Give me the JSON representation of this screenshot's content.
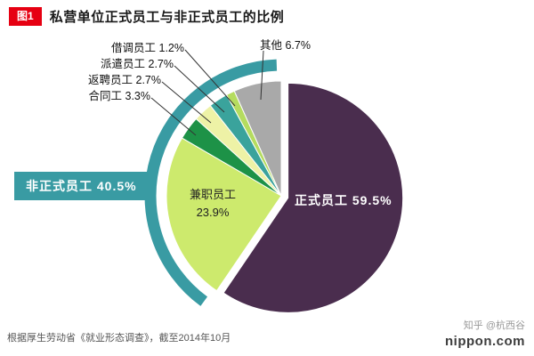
{
  "header": {
    "badge": "图1",
    "title": "私营单位正式员工与非正式员工的比例"
  },
  "chart_data": {
    "type": "pie",
    "title": "私营单位正式员工与非正式员工的比例",
    "unit": "%",
    "start_angle_deg": 0,
    "direction": "clockwise",
    "slices": [
      {
        "label": "正式员工",
        "value": 59.5,
        "color": "#4a2d4e",
        "exploded": true
      },
      {
        "label": "兼职员工",
        "value": 23.9,
        "color": "#cdea6d"
      },
      {
        "label": "合同工",
        "value": 3.3,
        "color": "#1d9247"
      },
      {
        "label": "返聘员工",
        "value": 2.7,
        "color": "#eef2a6"
      },
      {
        "label": "派遣员工",
        "value": 2.7,
        "color": "#3aa39c"
      },
      {
        "label": "借调员工",
        "value": 1.2,
        "color": "#b5dc5f"
      },
      {
        "label": "其他",
        "value": 6.7,
        "color": "#a9a9a9"
      }
    ],
    "group_annotation": {
      "label": "非正式员工",
      "value": 40.5,
      "color": "#399ba3",
      "covers": [
        "兼职员工",
        "合同工",
        "返聘员工",
        "派遣员工",
        "借调员工",
        "其他"
      ]
    },
    "source_note": "根据厚生劳动省《就业形态调查》，截至2014年10月"
  },
  "callouts": [
    "借调员工 1.2%",
    "派遣员工 2.7%",
    "返聘员工 2.7%",
    "合同工 3.3%",
    "其他 6.7%"
  ],
  "pie_labels": {
    "regular": "正式员工  59.5%",
    "part_time_name": "兼职员工",
    "part_time_value": "23.9%"
  },
  "group_badge": "非正式员工 40.5%",
  "footer": "根据厚生劳动省《就业形态调查》，截至2014年10月",
  "watermark": {
    "credit": "知乎 @杭西谷",
    "brand": "nippon.com"
  }
}
